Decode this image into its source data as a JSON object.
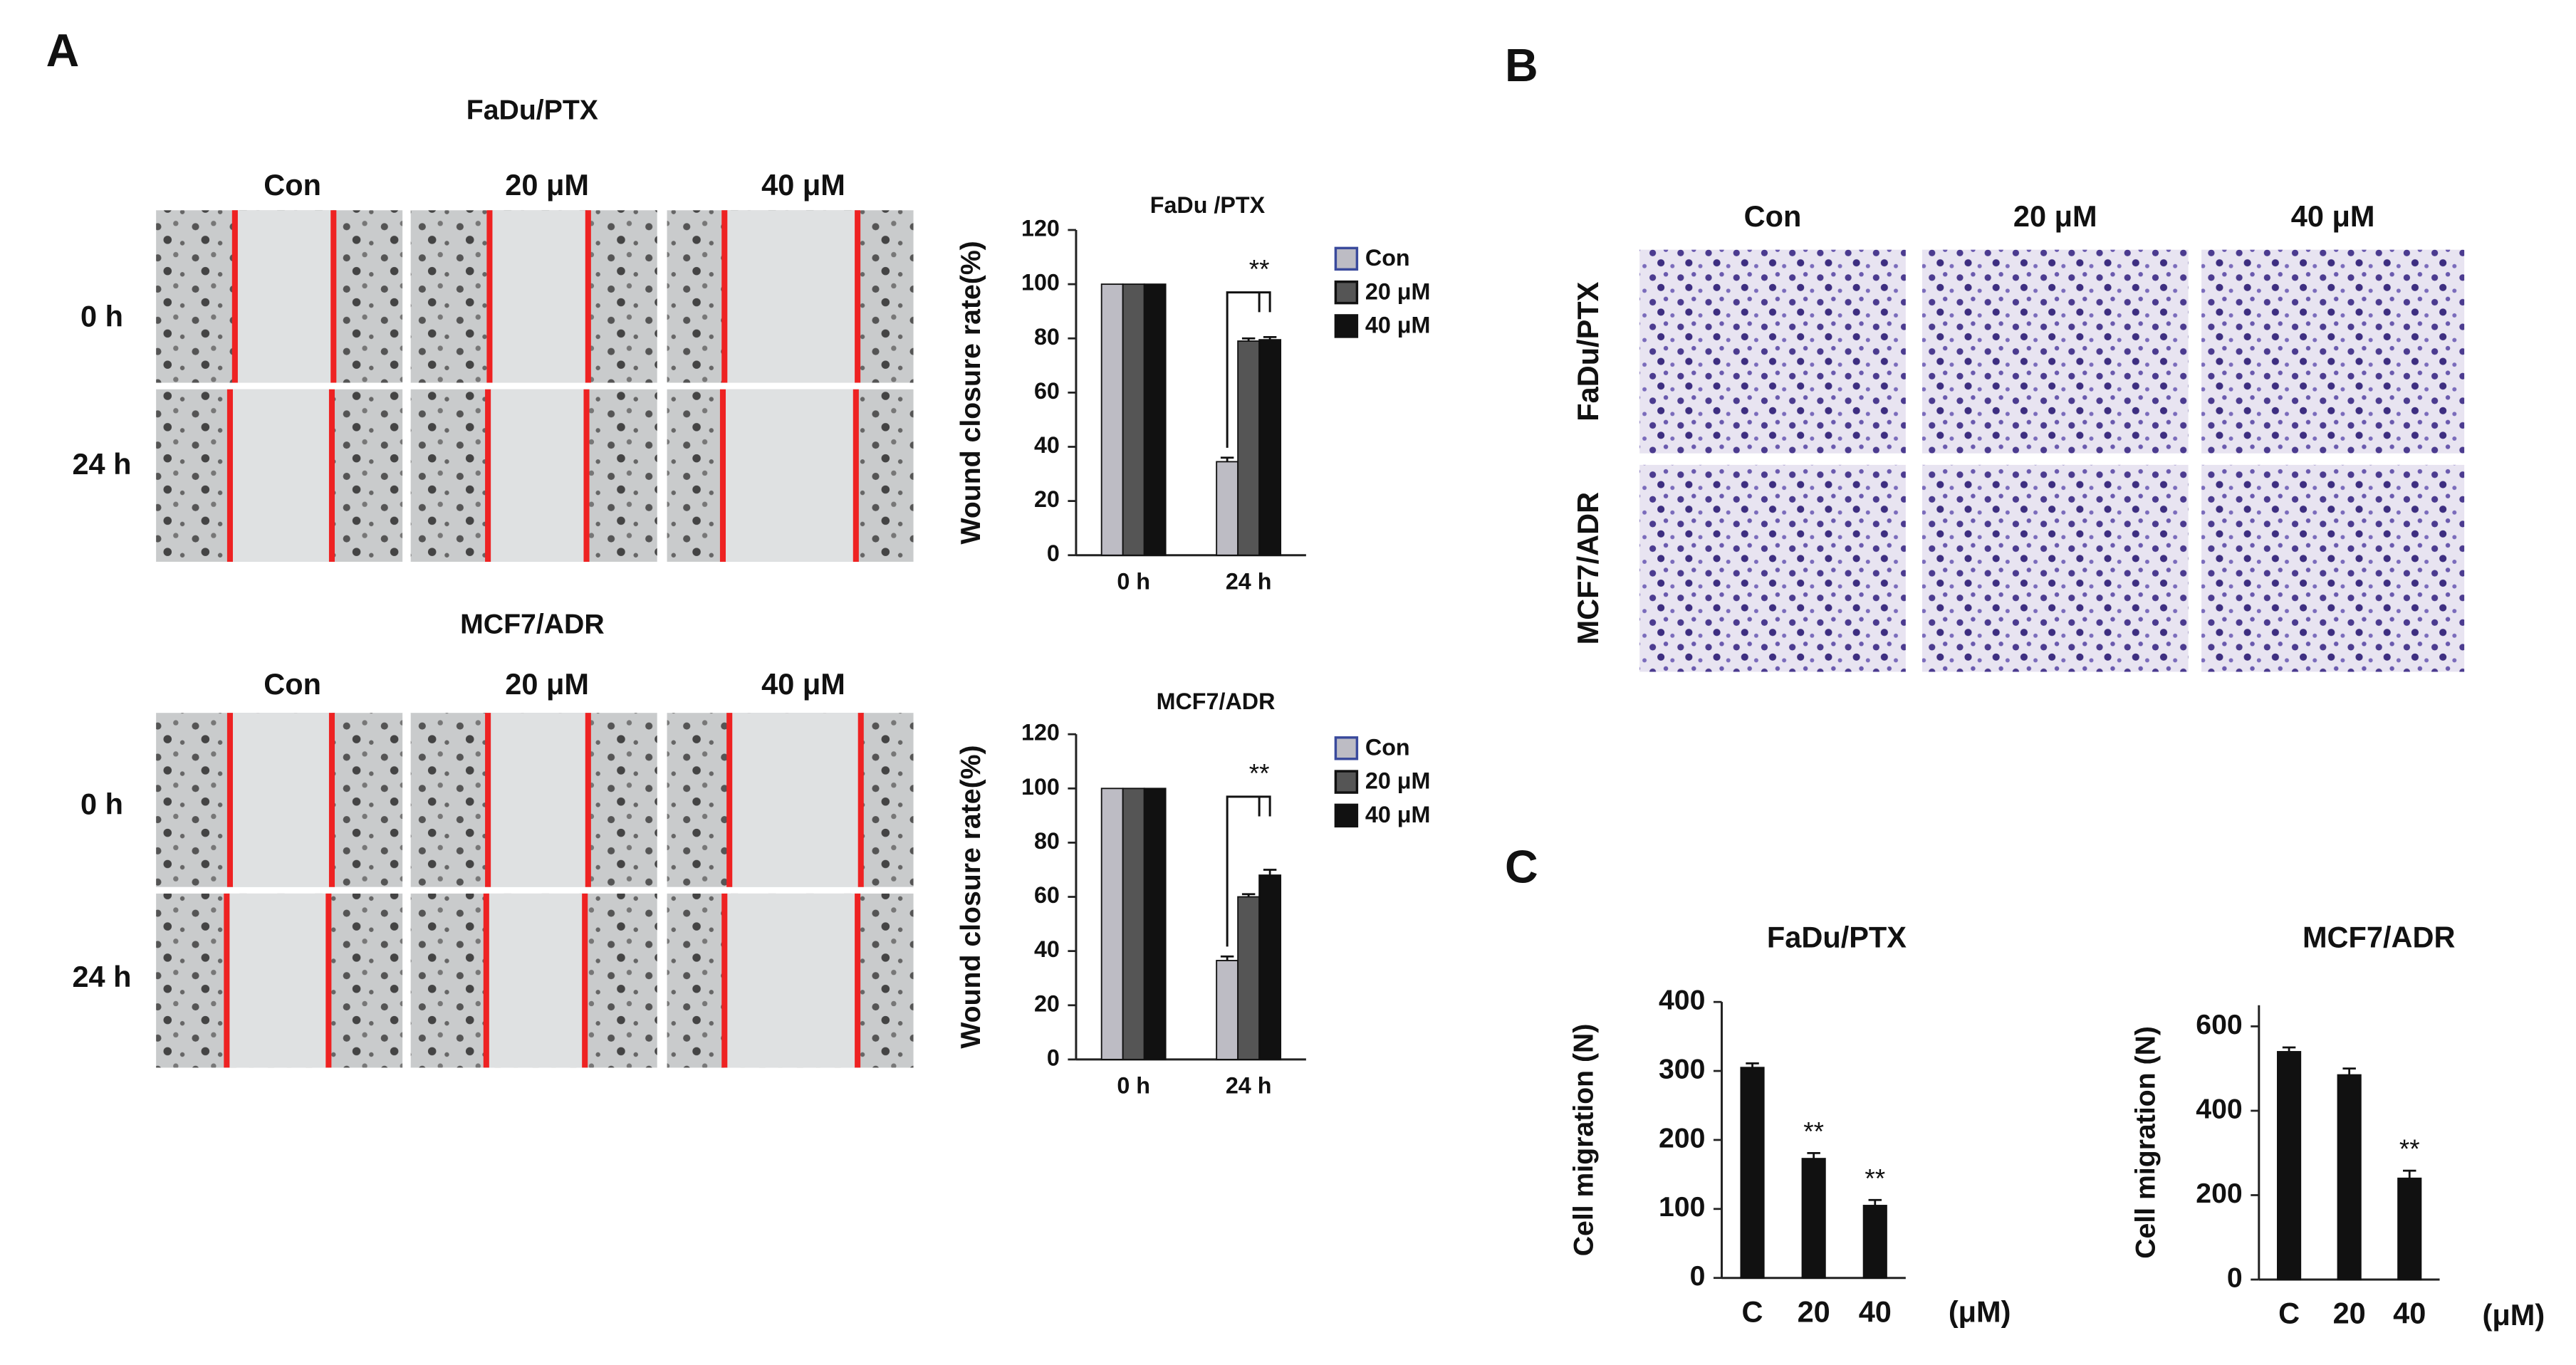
{
  "panels": {
    "a": "A",
    "b": "B",
    "c": "C"
  },
  "wound": [
    {
      "title": "FaDu/PTX",
      "columns": [
        "Con",
        "20 μM",
        "40 μM"
      ],
      "rows": [
        "0 h",
        "24 h"
      ]
    },
    {
      "title": "MCF7/ADR",
      "columns": [
        "Con",
        "20 μM",
        "40 μM"
      ],
      "rows": [
        "0 h",
        "24 h"
      ]
    }
  ],
  "transwell": {
    "columns": [
      "Con",
      "20 μM",
      "40 μM"
    ],
    "rows": [
      "FaDu/PTX",
      "MCF7/ADR"
    ]
  },
  "chart_data": [
    {
      "type": "bar",
      "title": "FaDu /PTX",
      "y_label": "Wound closure rate(%)",
      "categories": [
        "0 h",
        "24 h"
      ],
      "series": [
        {
          "name": "Con",
          "color": "#bdbcc4",
          "values": [
            100,
            34.5
          ],
          "errors": [
            0,
            1.5
          ]
        },
        {
          "name": "20 μM",
          "color": "#555555",
          "values": [
            100,
            79
          ],
          "errors": [
            0,
            1
          ]
        },
        {
          "name": "40 μM",
          "color": "#111111",
          "values": [
            100,
            79.5
          ],
          "errors": [
            0,
            1
          ]
        }
      ],
      "ylim": [
        0,
        120
      ],
      "yticks": [
        0,
        20,
        40,
        60,
        80,
        100,
        120
      ],
      "annotation": "**"
    },
    {
      "type": "bar",
      "title": "MCF7/ADR",
      "y_label": "Wound closure rate(%)",
      "categories": [
        "0 h",
        "24 h"
      ],
      "series": [
        {
          "name": "Con",
          "color": "#bdbcc4",
          "values": [
            100,
            36.5
          ],
          "errors": [
            0,
            1.5
          ]
        },
        {
          "name": "20 μM",
          "color": "#555555",
          "values": [
            100,
            60
          ],
          "errors": [
            0,
            1
          ]
        },
        {
          "name": "40 μM",
          "color": "#111111",
          "values": [
            100,
            68
          ],
          "errors": [
            0,
            2
          ]
        }
      ],
      "ylim": [
        0,
        120
      ],
      "yticks": [
        0,
        20,
        40,
        60,
        80,
        100,
        120
      ],
      "annotation": "**"
    },
    {
      "type": "bar",
      "title": "FaDu/PTX",
      "y_label": "Cell migration (N)",
      "x_label": "(μM)",
      "categories": [
        "C",
        "20",
        "40"
      ],
      "series": [
        {
          "color": "#111111",
          "values": [
            305,
            173,
            105
          ],
          "errors": [
            6,
            8,
            8
          ]
        }
      ],
      "annotations": [
        null,
        "**",
        "**"
      ],
      "ylim": [
        0,
        400
      ],
      "yticks": [
        0,
        100,
        200,
        300,
        400
      ]
    },
    {
      "type": "bar",
      "title": "MCF7/ADR",
      "y_label": "Cell migration (N)",
      "x_label": "(μM)",
      "categories": [
        "C",
        "20",
        "40"
      ],
      "series": [
        {
          "color": "#111111",
          "values": [
            540,
            485,
            240
          ],
          "errors": [
            10,
            15,
            18
          ]
        }
      ],
      "annotations": [
        null,
        null,
        "**"
      ],
      "ylim": [
        0,
        650
      ],
      "yticks": [
        0,
        200,
        400,
        600
      ]
    }
  ]
}
